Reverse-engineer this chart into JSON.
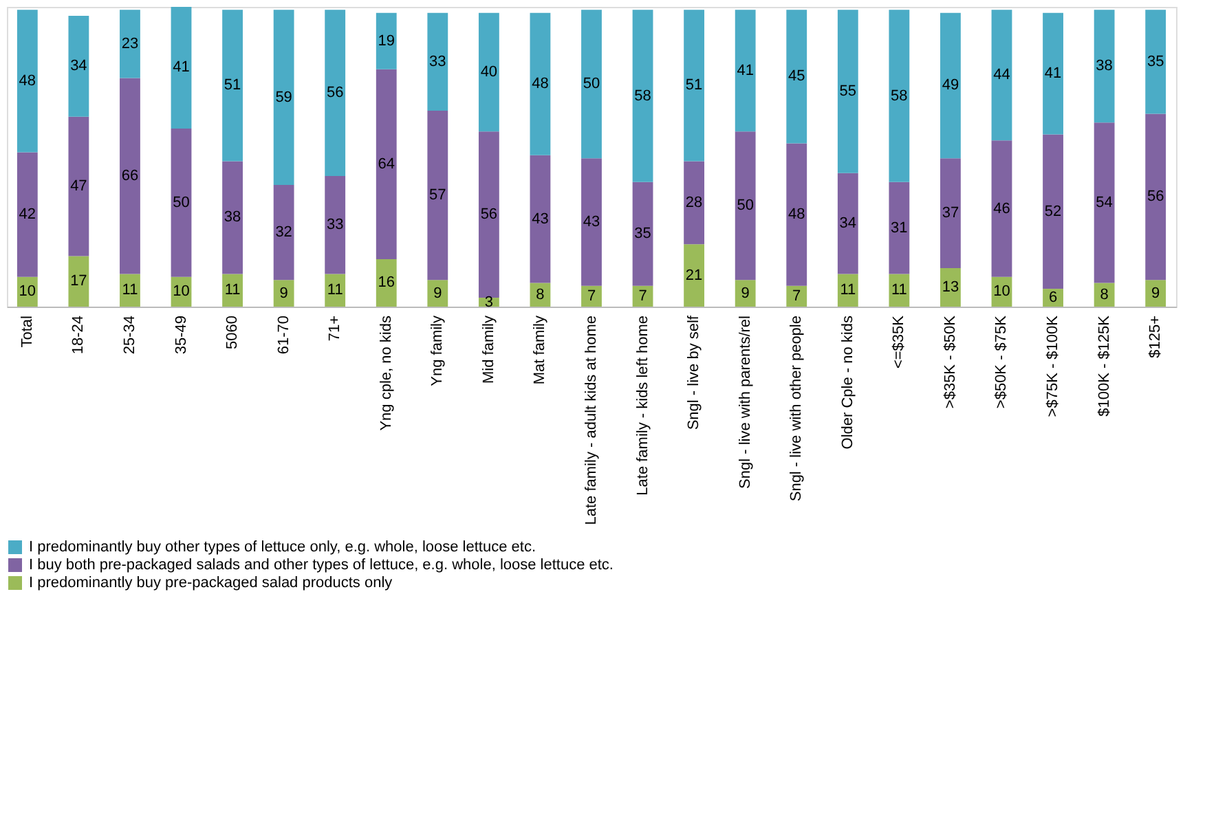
{
  "chart_data": {
    "type": "bar",
    "stacked": true,
    "data_labels": true,
    "legend": "bottom",
    "tick_labels": "x",
    "ylim": [
      0,
      101
    ],
    "categories": [
      "Total",
      "18-24",
      "25-34",
      "35-49",
      "5060",
      "61-70",
      "71+",
      "Yng cple, no kids",
      "Yng family",
      "Mid family",
      "Mat family",
      "Late family - adult kids at home",
      "Late family - kids left home",
      "Sngl - live by self",
      "Sngl - live with parents/rel",
      "Sngl - live with other people",
      "Older Cple - no kids",
      "<=$35K",
      ">$35K - $50K",
      ">$50K - $75K",
      ">$75K - $100K",
      "$100K - $125K",
      "$125+"
    ],
    "series": [
      {
        "name": "I predominantly  buy pre-packaged salad products only",
        "color": "#9bbb59",
        "values": [
          10,
          17,
          11,
          10,
          11,
          9,
          11,
          16,
          9,
          3,
          8,
          7,
          7,
          21,
          9,
          7,
          11,
          11,
          13,
          10,
          6,
          8,
          9
        ]
      },
      {
        "name": "I buy both pre-packaged salads and other types of lettuce, e.g. whole, loose lettuce etc.",
        "color": "#8064a2",
        "values": [
          42,
          47,
          66,
          50,
          38,
          32,
          33,
          64,
          57,
          56,
          43,
          43,
          35,
          28,
          50,
          48,
          34,
          31,
          37,
          46,
          52,
          54,
          56
        ]
      },
      {
        "name": "I predominantly buy other types of lettuce only, e.g. whole, loose lettuce etc.",
        "color": "#4bacc6",
        "values": [
          48,
          34,
          23,
          41,
          51,
          59,
          56,
          19,
          33,
          40,
          48,
          50,
          58,
          51,
          41,
          45,
          55,
          58,
          49,
          44,
          41,
          38,
          35
        ]
      }
    ]
  }
}
